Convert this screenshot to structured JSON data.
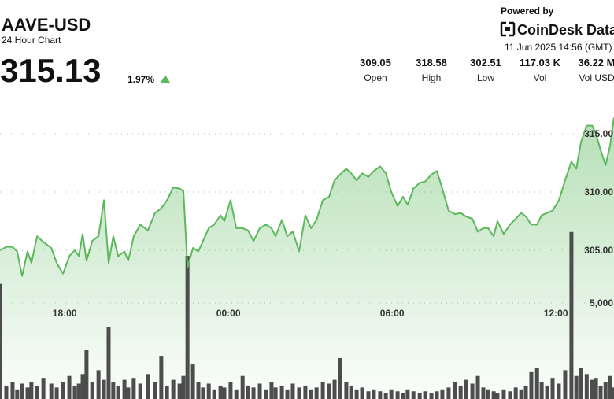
{
  "header": {
    "symbol": "AAVE-USD",
    "subtitle": "24 Hour Chart",
    "price": 315.13,
    "change": {
      "value": 1.97,
      "label": "1.97%"
    },
    "powered_by": "Powered by",
    "brand": "CoinDesk Data",
    "timestamp": "11 Jun 2025 14:56 (GMT)",
    "stats": [
      {
        "value": "309.05",
        "label": "Open"
      },
      {
        "value": "318.58",
        "label": "High"
      },
      {
        "value": "302.51",
        "label": "Low"
      },
      {
        "value": "117.03 K",
        "label": "Vol"
      },
      {
        "value": "36.22 M",
        "label": "Vol USD"
      }
    ]
  },
  "chart_data": {
    "type": "line",
    "x": [
      15.63,
      15.86,
      16.09,
      16.26,
      16.44,
      16.64,
      16.78,
      16.99,
      17.22,
      17.51,
      17.71,
      17.94,
      18.17,
      18.37,
      18.52,
      18.66,
      18.8,
      19.01,
      19.24,
      19.44,
      19.61,
      19.78,
      19.96,
      20.19,
      20.33,
      20.53,
      20.77,
      21.05,
      21.31,
      21.54,
      21.75,
      21.98,
      22.21,
      22.35,
      22.5,
      22.7,
      22.9,
      23.07,
      23.28,
      23.48,
      23.71,
      23.85,
      24.08,
      24.29,
      24.52,
      24.72,
      24.92,
      25.15,
      25.38,
      25.58,
      25.73,
      25.96,
      26.16,
      26.36,
      26.59,
      26.82,
      27.03,
      27.23,
      27.46,
      27.69,
      27.89,
      28.09,
      28.32,
      28.5,
      28.7,
      28.9,
      29.13,
      29.33,
      29.56,
      29.77,
      29.97,
      30.2,
      30.4,
      30.57,
      30.78,
      31.01,
      31.21,
      31.44,
      31.64,
      31.84,
      32.07,
      32.31,
      32.51,
      32.71,
      32.94,
      33.14,
      33.34,
      33.52,
      33.72,
      33.86,
      34.09,
      34.32,
      34.53,
      34.73,
      34.9,
      35.1,
      35.31,
      35.48,
      35.68,
      35.88,
      36.11,
      36.34,
      36.57,
      36.75,
      36.92,
      37.13,
      37.33,
      37.47,
      37.64,
      37.82,
      37.99,
      38.13
    ],
    "series": [
      {
        "type": "line",
        "color": "#5cb85c",
        "values": [
          305.0,
          305.3,
          305.3,
          304.9,
          302.8,
          304.9,
          303.9,
          306.2,
          305.7,
          305.2,
          303.9,
          303.0,
          304.5,
          305.0,
          304.5,
          306.4,
          304.1,
          305.8,
          306.2,
          309.3,
          303.9,
          306.2,
          304.5,
          304.9,
          304.1,
          306.2,
          307.2,
          306.7,
          308.2,
          308.6,
          309.3,
          310.4,
          310.3,
          310.1,
          303.5,
          305.2,
          304.9,
          305.8,
          306.9,
          307.2,
          308.0,
          307.5,
          309.3,
          306.9,
          306.9,
          306.7,
          305.8,
          306.9,
          307.2,
          306.9,
          306.2,
          307.6,
          306.2,
          306.6,
          304.9,
          308.0,
          306.9,
          307.6,
          309.3,
          309.6,
          311.0,
          311.5,
          312.0,
          311.6,
          311.0,
          311.6,
          311.3,
          311.8,
          312.2,
          311.6,
          310.0,
          308.8,
          309.6,
          308.9,
          310.3,
          310.8,
          310.9,
          311.5,
          311.8,
          310.3,
          308.4,
          308.1,
          308.2,
          307.9,
          307.7,
          306.6,
          306.9,
          306.9,
          306.2,
          307.5,
          306.4,
          307.2,
          307.7,
          308.2,
          307.9,
          307.2,
          307.2,
          308.0,
          308.2,
          308.4,
          309.3,
          311.0,
          312.6,
          312.0,
          314.3,
          315.7,
          315.7,
          315.0,
          313.6,
          312.3,
          314.0,
          316.4
        ]
      },
      {
        "type": "bar",
        "axis": "y2",
        "color": "#4d4d4d",
        "values": [
          6000,
          700,
          900,
          500,
          800,
          600,
          900,
          700,
          1100,
          800,
          600,
          900,
          1200,
          700,
          800,
          1300,
          2540,
          900,
          1500,
          1000,
          3770,
          900,
          700,
          1000,
          600,
          1100,
          800,
          1300,
          900,
          2250,
          700,
          1000,
          800,
          1200,
          7460,
          1800,
          900,
          600,
          800,
          500,
          700,
          600,
          900,
          500,
          1200,
          700,
          600,
          800,
          500,
          900,
          600,
          700,
          500,
          800,
          600,
          700,
          500,
          600,
          900,
          800,
          1000,
          2130,
          900,
          700,
          500,
          600,
          400,
          500,
          400,
          300,
          500,
          400,
          300,
          500,
          400,
          300,
          400,
          300,
          400,
          500,
          600,
          900,
          700,
          1000,
          800,
          1200,
          600,
          500,
          400,
          300,
          500,
          400,
          600,
          500,
          700,
          1400,
          1600,
          900,
          700,
          1100,
          800,
          1500,
          8700,
          1200,
          1600,
          1300,
          1000,
          1100,
          700,
          900,
          1200,
          600
        ]
      }
    ],
    "xlim": [
      15.63,
      38.13
    ],
    "xticks": [
      {
        "value": 18,
        "label": "18:00"
      },
      {
        "value": 24,
        "label": "00:00"
      },
      {
        "value": 30,
        "label": "06:00"
      },
      {
        "value": 36,
        "label": "12:00"
      }
    ],
    "ylim": [
      292.23,
      317.5
    ],
    "yticks": [
      {
        "value": 305,
        "label": "305.00"
      },
      {
        "value": 310,
        "label": "310.00"
      },
      {
        "value": 315,
        "label": "315.00"
      }
    ],
    "y2lim": [
      0,
      15330
    ],
    "y2ticks": [
      {
        "value": 5000,
        "label": "5,000"
      }
    ],
    "grid": true
  }
}
